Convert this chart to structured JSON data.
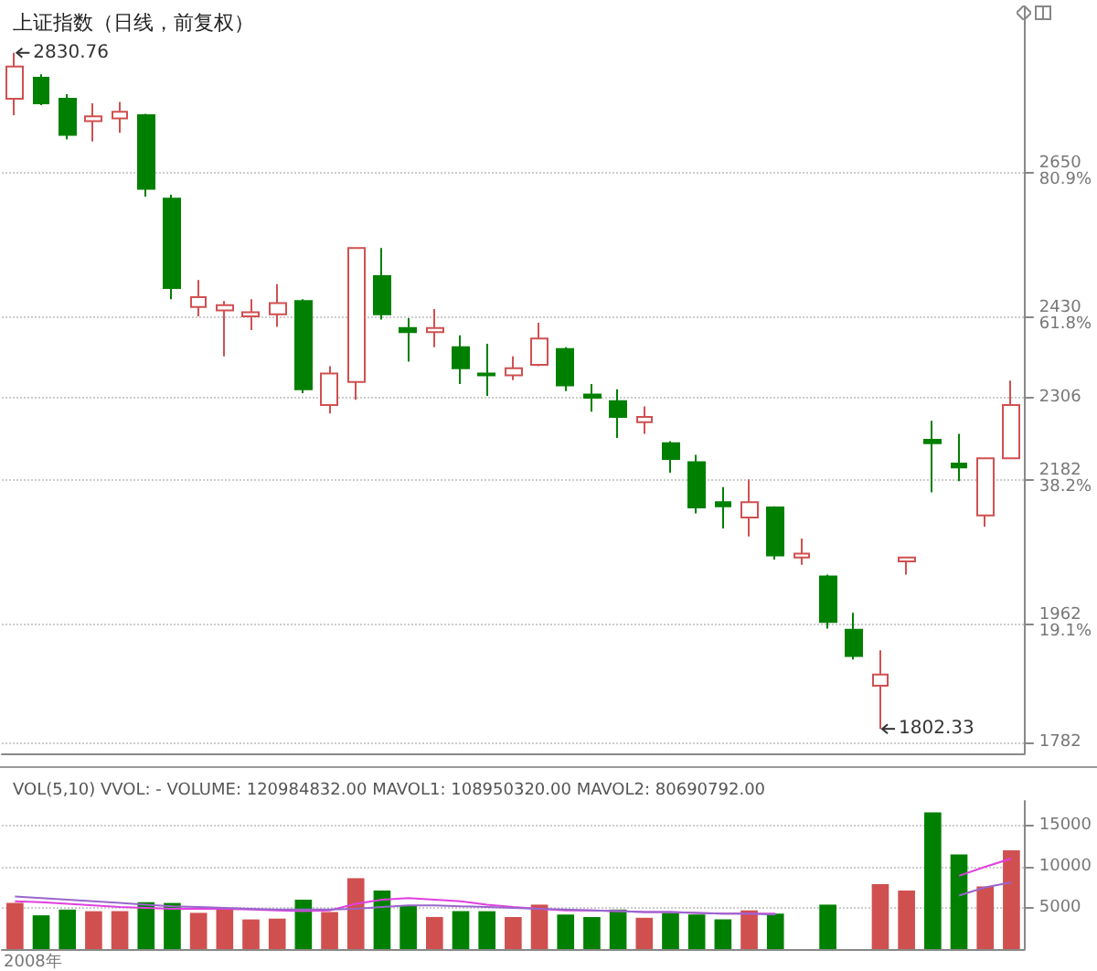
{
  "chart_data": [
    {
      "type": "candlestick",
      "title": "上证指数（日线，前复权）",
      "categories": [
        null,
        null,
        null,
        null,
        null,
        null,
        null,
        null,
        null,
        null,
        null,
        null,
        null,
        null,
        null,
        null,
        null,
        null,
        null,
        null,
        null,
        null,
        null,
        null,
        null,
        null,
        null,
        null,
        null,
        null,
        null,
        null,
        null,
        null,
        null,
        null,
        null,
        null,
        null
      ],
      "ohlc": [
        [
          2761,
          2830.76,
          2736,
          2810
        ],
        [
          2793,
          2798,
          2751,
          2754
        ],
        [
          2761,
          2768,
          2699,
          2706
        ],
        [
          2727,
          2754,
          2696,
          2734
        ],
        [
          2731,
          2756,
          2709,
          2741
        ],
        [
          2736,
          2738,
          2612,
          2624
        ],
        [
          2609,
          2615,
          2456,
          2473
        ],
        [
          2444,
          2485,
          2430,
          2459
        ],
        [
          2439,
          2453,
          2369,
          2447
        ],
        [
          2430,
          2456,
          2409,
          2436
        ],
        [
          2433,
          2479,
          2414,
          2450
        ],
        [
          2453,
          2456,
          2313,
          2319
        ],
        [
          2295,
          2354,
          2282,
          2343
        ],
        [
          2330,
          2534,
          2303,
          2534
        ],
        [
          2491,
          2534,
          2425,
          2433
        ],
        [
          2412,
          2427,
          2361,
          2406
        ],
        [
          2406,
          2441,
          2383,
          2412
        ],
        [
          2383,
          2401,
          2327,
          2351
        ],
        [
          2343,
          2388,
          2309,
          2340
        ],
        [
          2340,
          2369,
          2333,
          2351
        ],
        [
          2356,
          2420,
          2354,
          2396
        ],
        [
          2380,
          2383,
          2316,
          2325
        ],
        [
          2311,
          2327,
          2285,
          2306
        ],
        [
          2301,
          2319,
          2245,
          2277
        ],
        [
          2269,
          2293,
          2251,
          2277
        ],
        [
          2237,
          2240,
          2192,
          2213
        ],
        [
          2208,
          2219,
          2130,
          2139
        ],
        [
          2147,
          2170,
          2107,
          2141
        ],
        [
          2124,
          2182,
          2095,
          2147
        ],
        [
          2139,
          2141,
          2060,
          2066
        ],
        [
          2063,
          2092,
          2052,
          2069
        ],
        [
          2034,
          2037,
          1955,
          1965
        ],
        [
          1953,
          1979,
          1908,
          1913
        ],
        [
          1868,
          1922,
          1802.33,
          1885
        ],
        [
          2057,
          2063,
          2037,
          2063
        ],
        [
          2242,
          2271,
          2162,
          2237
        ],
        [
          2206,
          2251,
          2179,
          2200
        ],
        [
          2127,
          2214,
          2110,
          2214
        ],
        [
          2214,
          2332,
          2214,
          2295
        ]
      ],
      "colors": [
        "#d05050",
        "#008000",
        "#008000",
        "#d05050",
        "#d05050",
        "#008000",
        "#008000",
        "#d05050",
        "#d05050",
        "#d05050",
        "#d05050",
        "#008000",
        "#d05050",
        "#d05050",
        "#008000",
        "#008000",
        "#d05050",
        "#008000",
        "#008000",
        "#d05050",
        "#d05050",
        "#008000",
        "#008000",
        "#008000",
        "#d05050",
        "#008000",
        "#008000",
        "#008000",
        "#d05050",
        "#008000",
        "#d05050",
        "#008000",
        "#008000",
        "#d05050",
        "#d05050",
        "#008000",
        "#008000",
        "#d05050",
        "#d05050"
      ],
      "ylim": [
        1765,
        2900
      ],
      "yticks": [
        {
          "value": 2650,
          "label": "2650\n80.9%"
        },
        {
          "value": 2430,
          "label": "2430\n61.8%"
        },
        2306,
        {
          "value": 2182,
          "label": "2182\n38.2%"
        },
        {
          "value": 1962,
          "label": "1962\n19.1%"
        },
        1782
      ],
      "grid": "y",
      "annotations": [
        "2830.76",
        "1802.33"
      ]
    },
    {
      "type": "bar",
      "title": "VOL(5,10) VVOL: - VOLUME: 120984832.00 MAVOL1: 108950320.00 MAVOL2: 80690792.00",
      "categories": [
        null,
        null,
        null,
        null,
        null,
        null,
        null,
        null,
        null,
        null,
        null,
        null,
        null,
        null,
        null,
        null,
        null,
        null,
        null,
        null,
        null,
        null,
        null,
        null,
        null,
        null,
        null,
        null,
        null,
        null,
        null,
        null,
        null,
        null,
        null,
        null,
        null,
        null,
        null
      ],
      "values": [
        5600,
        4100,
        4800,
        4600,
        4600,
        5700,
        5600,
        4400,
        4900,
        3600,
        3700,
        6000,
        4500,
        8600,
        7100,
        5300,
        3900,
        4600,
        4600,
        3900,
        5400,
        4200,
        3900,
        4800,
        3800,
        4400,
        4200,
        3600,
        4700,
        4300,
        null,
        5400,
        null,
        7900,
        7100,
        16600,
        11500,
        7600,
        12000
      ],
      "colors": [
        "#d05050",
        "#008000",
        "#008000",
        "#d05050",
        "#d05050",
        "#008000",
        "#008000",
        "#d05050",
        "#d05050",
        "#d05050",
        "#d05050",
        "#008000",
        "#d05050",
        "#d05050",
        "#008000",
        "#008000",
        "#d05050",
        "#008000",
        "#008000",
        "#d05050",
        "#d05050",
        "#008000",
        "#008000",
        "#008000",
        "#d05050",
        "#008000",
        "#008000",
        "#008000",
        "#d05050",
        "#008000",
        "#d05050",
        "#008000",
        "#008000",
        "#d05050",
        "#d05050",
        "#008000",
        "#008000",
        "#d05050",
        "#d05050"
      ],
      "series": [
        {
          "type": "line",
          "color": "#e040e0",
          "values": [
            5800,
            5700,
            5500,
            5300,
            5100,
            5000,
            4900,
            4900,
            4900,
            4800,
            4700,
            4600,
            4700,
            5500,
            6000,
            6200,
            6000,
            5800,
            5400,
            5100,
            4900,
            4700,
            4700,
            4600,
            4500,
            4500,
            4400,
            4300,
            4300,
            4300,
            null,
            null,
            null,
            null,
            null,
            null,
            8900,
            10000,
            11000
          ]
        },
        {
          "type": "line",
          "color": "#9966cc",
          "values": [
            6400,
            6200,
            6000,
            5800,
            5600,
            5400,
            5200,
            5100,
            5000,
            4900,
            4800,
            4800,
            4800,
            4900,
            5100,
            5300,
            5300,
            5200,
            5100,
            5000,
            4900,
            4800,
            4700,
            4600,
            4500,
            4500,
            4400,
            4300,
            4300,
            4200,
            null,
            null,
            null,
            null,
            null,
            null,
            6500,
            7500,
            8100
          ]
        }
      ],
      "ylim": [
        0,
        18000
      ],
      "yticks": [
        5000,
        10000,
        15000
      ],
      "grid": "y",
      "annotations": [
        "2008年"
      ]
    }
  ]
}
